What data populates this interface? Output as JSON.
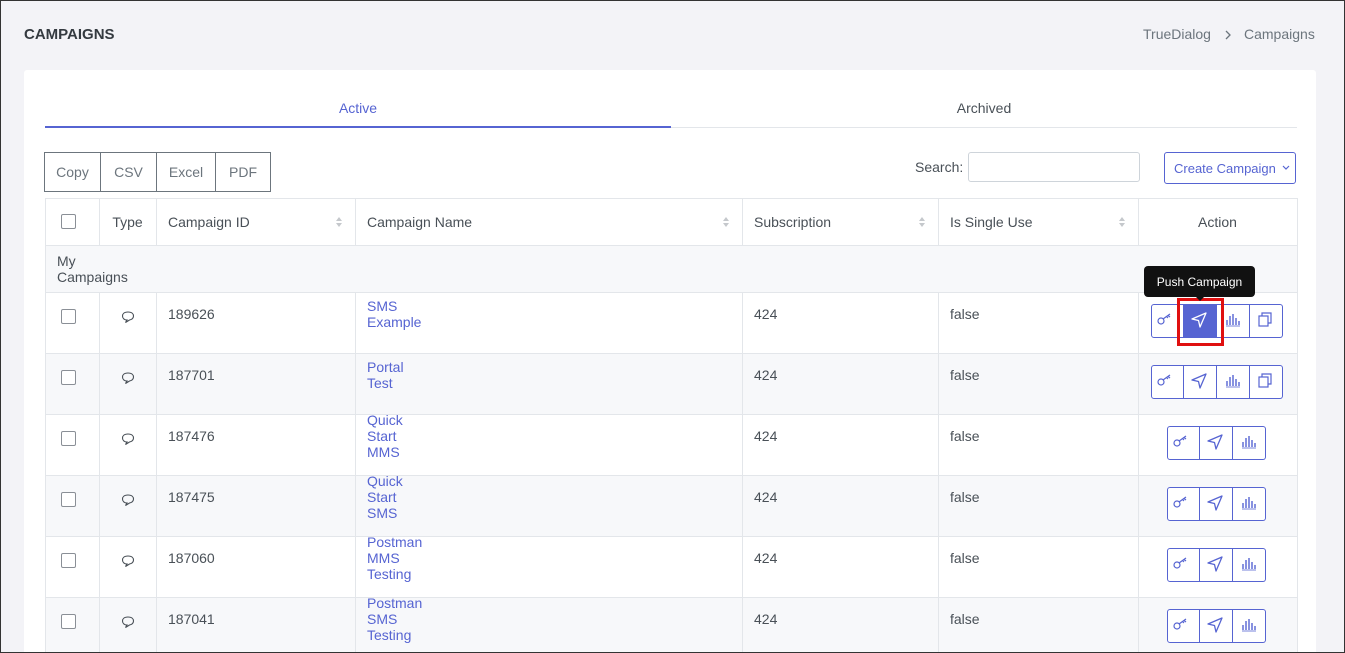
{
  "header": {
    "title": "CAMPAIGNS",
    "breadcrumb": [
      "TrueDialog",
      "Campaigns"
    ]
  },
  "tabs": [
    "Active",
    "Archived"
  ],
  "export_buttons": [
    "Copy",
    "CSV",
    "Excel",
    "PDF"
  ],
  "search_label": "Search:",
  "create_button": "Create Campaign",
  "tooltip": "Push Campaign",
  "table": {
    "columns": [
      "Type",
      "Campaign ID",
      "Campaign Name",
      "Subscription",
      "Is Single Use",
      "Action"
    ],
    "group": "My Campaigns",
    "rows": [
      [
        189626,
        "SMS Example",
        424,
        "false"
      ],
      [
        187701,
        "Portal Test",
        424,
        "false"
      ],
      [
        187476,
        "Quick Start MMS",
        424,
        "false"
      ],
      [
        187475,
        "Quick Start SMS",
        424,
        "false"
      ],
      [
        187060,
        "Postman MMS Testing",
        424,
        "false"
      ],
      [
        187041,
        "Postman SMS Testing",
        424,
        "false"
      ]
    ]
  }
}
